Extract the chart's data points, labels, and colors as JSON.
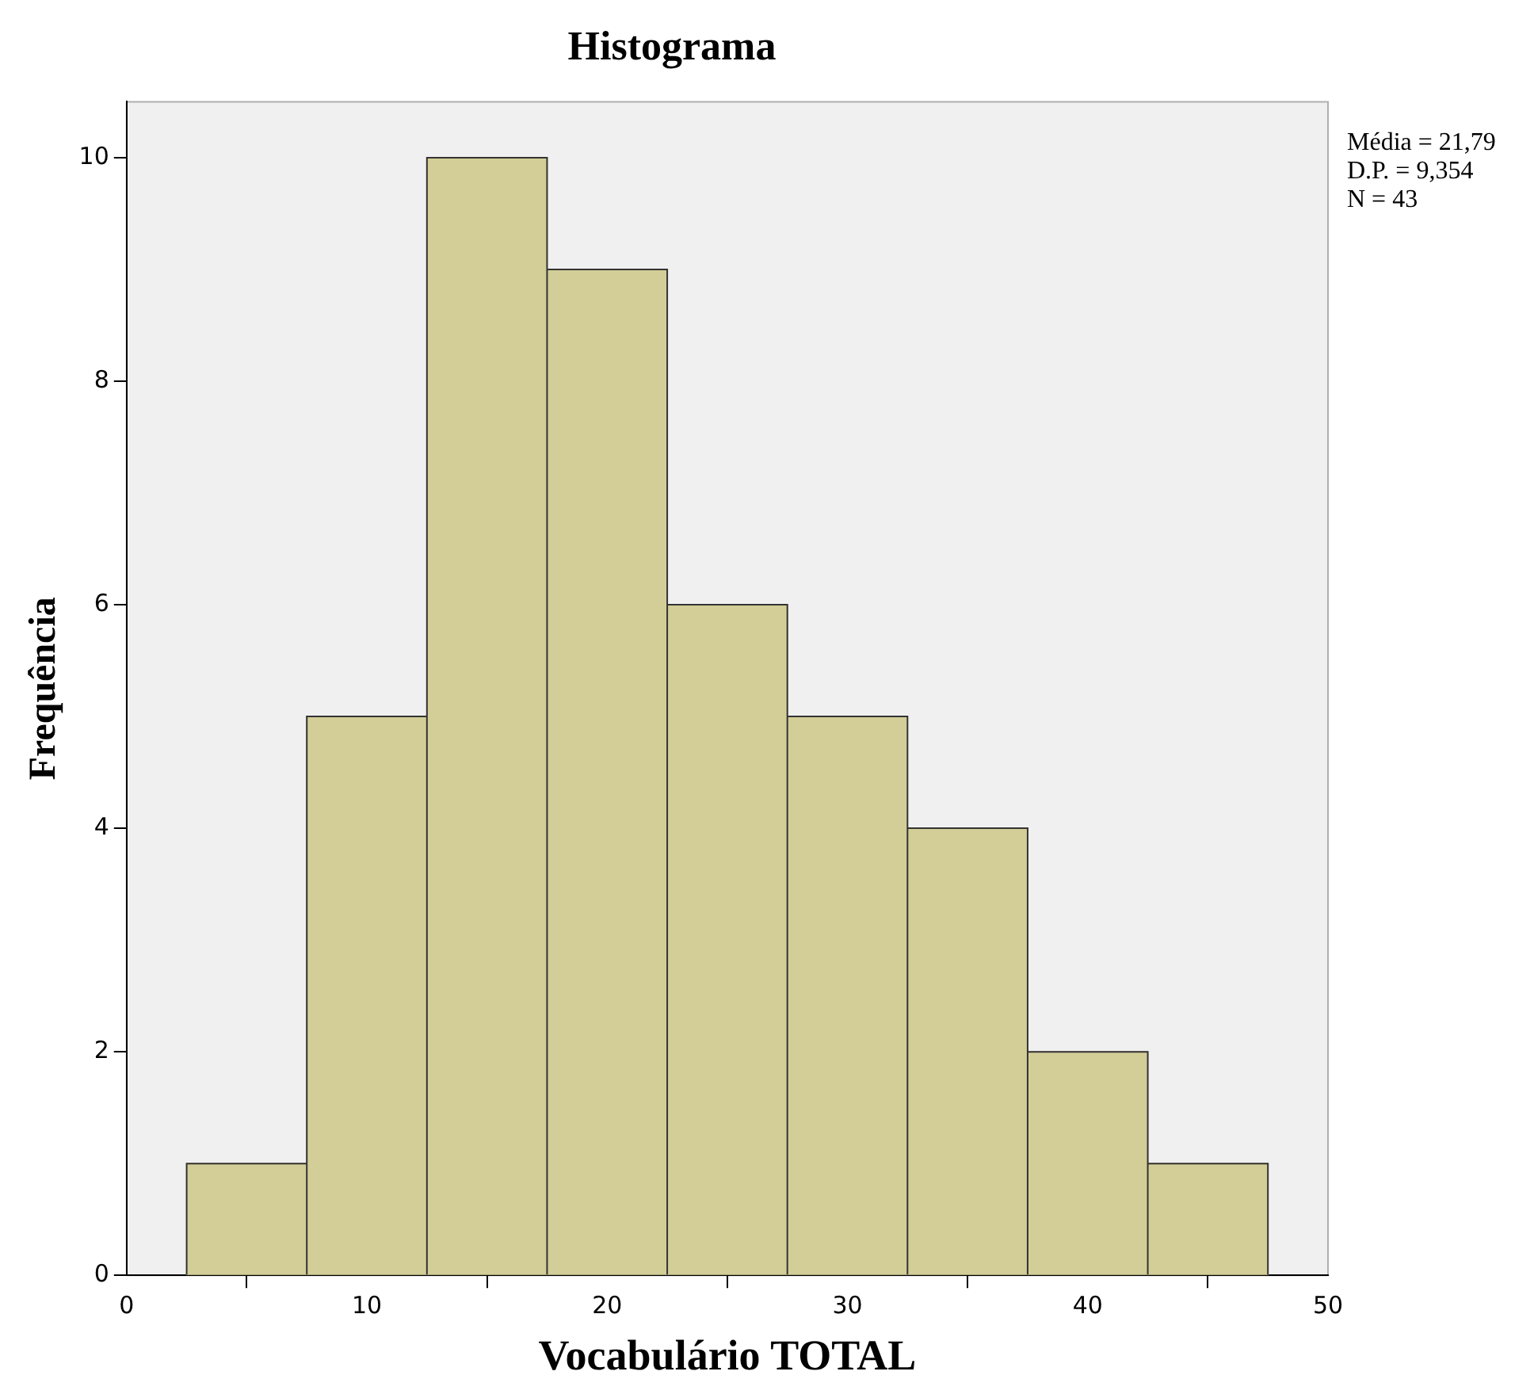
{
  "chart_data": {
    "type": "histogram",
    "title": "Histograma",
    "xlabel": "Vocabulário TOTAL",
    "ylabel": "Frequência",
    "bins": [
      2.5,
      7.5,
      12.5,
      17.5,
      22.5,
      27.5,
      32.5,
      37.5,
      42.5,
      47.5
    ],
    "values": [
      1,
      5,
      10,
      9,
      6,
      5,
      4,
      2,
      1
    ],
    "color": "#d3ce97",
    "xlim": [
      0,
      50
    ],
    "xticks": [
      0,
      10,
      20,
      30,
      40,
      50
    ],
    "ylim": [
      0,
      10.5
    ],
    "yticks": [
      0,
      2,
      4,
      6,
      8,
      10
    ],
    "grid": false,
    "legend": false,
    "annotations": [
      "Média = 21,79",
      "D.P. = 9,354",
      "N = 43"
    ]
  }
}
